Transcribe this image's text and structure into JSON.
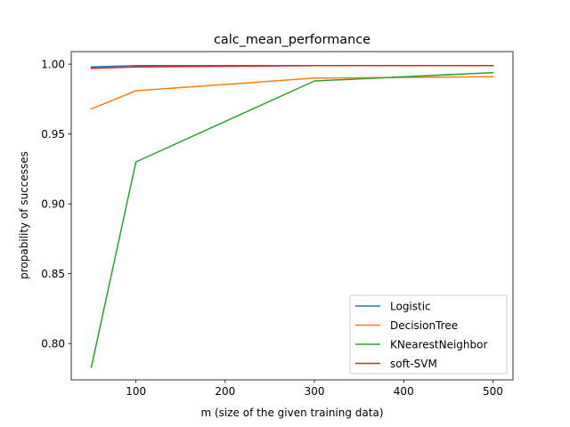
{
  "chart_data": {
    "type": "line",
    "title": "calc_mean_performance",
    "xlabel": "m (size of the given training data)",
    "ylabel": "propability of successes",
    "xlim": [
      27.5,
      522.5
    ],
    "ylim": [
      0.774,
      1.009
    ],
    "xticks": [
      100,
      200,
      300,
      400,
      500
    ],
    "xtick_labels": [
      "100",
      "200",
      "300",
      "400",
      "500"
    ],
    "yticks": [
      0.8,
      0.85,
      0.9,
      0.95,
      1.0
    ],
    "ytick_labels": [
      "0.80",
      "0.85",
      "0.90",
      "0.95",
      "1.00"
    ],
    "grid": false,
    "legend_position": "lower-right",
    "x": [
      50,
      100,
      300,
      500
    ],
    "series": [
      {
        "name": "Logistic",
        "color": "#1f77b4",
        "values": [
          0.998,
          0.999,
          0.999,
          0.999
        ]
      },
      {
        "name": "DecisionTree",
        "color": "#ff7f0e",
        "values": [
          0.968,
          0.981,
          0.99,
          0.991
        ]
      },
      {
        "name": "KNearestNeighbor",
        "color": "#2ca02c",
        "values": [
          0.783,
          0.93,
          0.988,
          0.994
        ]
      },
      {
        "name": "soft-SVM",
        "color": "#d62728",
        "values": [
          0.997,
          0.998,
          0.999,
          0.999
        ]
      }
    ]
  }
}
